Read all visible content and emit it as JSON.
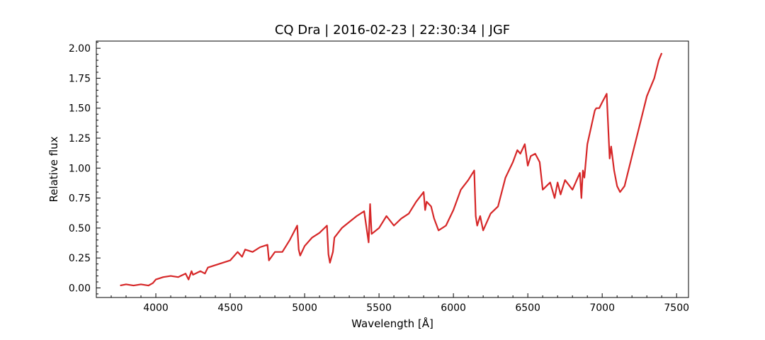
{
  "chart_data": {
    "type": "line",
    "title": "CQ Dra | 2016-02-23 | 22:30:34 | JGF",
    "xlabel": "Wavelength [Å]",
    "ylabel": "Relative flux",
    "xlim": [
      3600,
      7580
    ],
    "ylim": [
      -0.08,
      2.06
    ],
    "x_ticks": [
      4000,
      4500,
      5000,
      5500,
      6000,
      6500,
      7000,
      7500
    ],
    "x_tick_labels": [
      "4000",
      "4500",
      "5000",
      "5500",
      "6000",
      "6500",
      "7000",
      "7500"
    ],
    "y_ticks": [
      0.0,
      0.25,
      0.5,
      0.75,
      1.0,
      1.25,
      1.5,
      1.75,
      2.0
    ],
    "y_tick_labels": [
      "0.00",
      "0.25",
      "0.50",
      "0.75",
      "1.00",
      "1.25",
      "1.50",
      "1.75",
      "2.00"
    ],
    "grid": false,
    "series": [
      {
        "color": "#d62728",
        "x": [
          3760,
          3800,
          3850,
          3900,
          3950,
          3980,
          4000,
          4050,
          4100,
          4150,
          4200,
          4220,
          4240,
          4250,
          4300,
          4330,
          4350,
          4400,
          4450,
          4500,
          4550,
          4580,
          4600,
          4650,
          4700,
          4750,
          4760,
          4800,
          4850,
          4900,
          4950,
          4960,
          4970,
          5000,
          5050,
          5100,
          5150,
          5160,
          5170,
          5190,
          5200,
          5250,
          5300,
          5350,
          5400,
          5430,
          5440,
          5450,
          5500,
          5550,
          5600,
          5650,
          5700,
          5750,
          5800,
          5810,
          5820,
          5850,
          5870,
          5900,
          5950,
          6000,
          6050,
          6100,
          6140,
          6150,
          6160,
          6180,
          6200,
          6250,
          6300,
          6350,
          6400,
          6430,
          6450,
          6480,
          6500,
          6520,
          6550,
          6580,
          6600,
          6650,
          6680,
          6700,
          6720,
          6750,
          6800,
          6850,
          6860,
          6870,
          6880,
          6900,
          6950,
          6960,
          6980,
          7000,
          7030,
          7050,
          7060,
          7080,
          7100,
          7120,
          7150,
          7200,
          7250,
          7300,
          7350,
          7380,
          7400
        ],
        "y": [
          0.02,
          0.03,
          0.02,
          0.03,
          0.02,
          0.04,
          0.07,
          0.09,
          0.1,
          0.09,
          0.12,
          0.07,
          0.14,
          0.11,
          0.14,
          0.12,
          0.17,
          0.19,
          0.21,
          0.23,
          0.3,
          0.26,
          0.32,
          0.3,
          0.34,
          0.36,
          0.23,
          0.3,
          0.3,
          0.4,
          0.52,
          0.32,
          0.27,
          0.35,
          0.42,
          0.46,
          0.52,
          0.28,
          0.21,
          0.3,
          0.42,
          0.5,
          0.55,
          0.6,
          0.64,
          0.38,
          0.7,
          0.45,
          0.5,
          0.6,
          0.52,
          0.58,
          0.62,
          0.72,
          0.8,
          0.65,
          0.72,
          0.68,
          0.58,
          0.48,
          0.52,
          0.65,
          0.82,
          0.9,
          0.98,
          0.6,
          0.52,
          0.6,
          0.48,
          0.62,
          0.68,
          0.92,
          1.05,
          1.15,
          1.12,
          1.2,
          1.02,
          1.1,
          1.12,
          1.05,
          0.82,
          0.88,
          0.75,
          0.88,
          0.78,
          0.9,
          0.82,
          0.96,
          0.75,
          0.98,
          0.92,
          1.2,
          1.48,
          1.5,
          1.5,
          1.55,
          1.62,
          1.08,
          1.18,
          0.98,
          0.85,
          0.8,
          0.85,
          1.1,
          1.35,
          1.6,
          1.75,
          1.9,
          1.96
        ]
      }
    ]
  }
}
